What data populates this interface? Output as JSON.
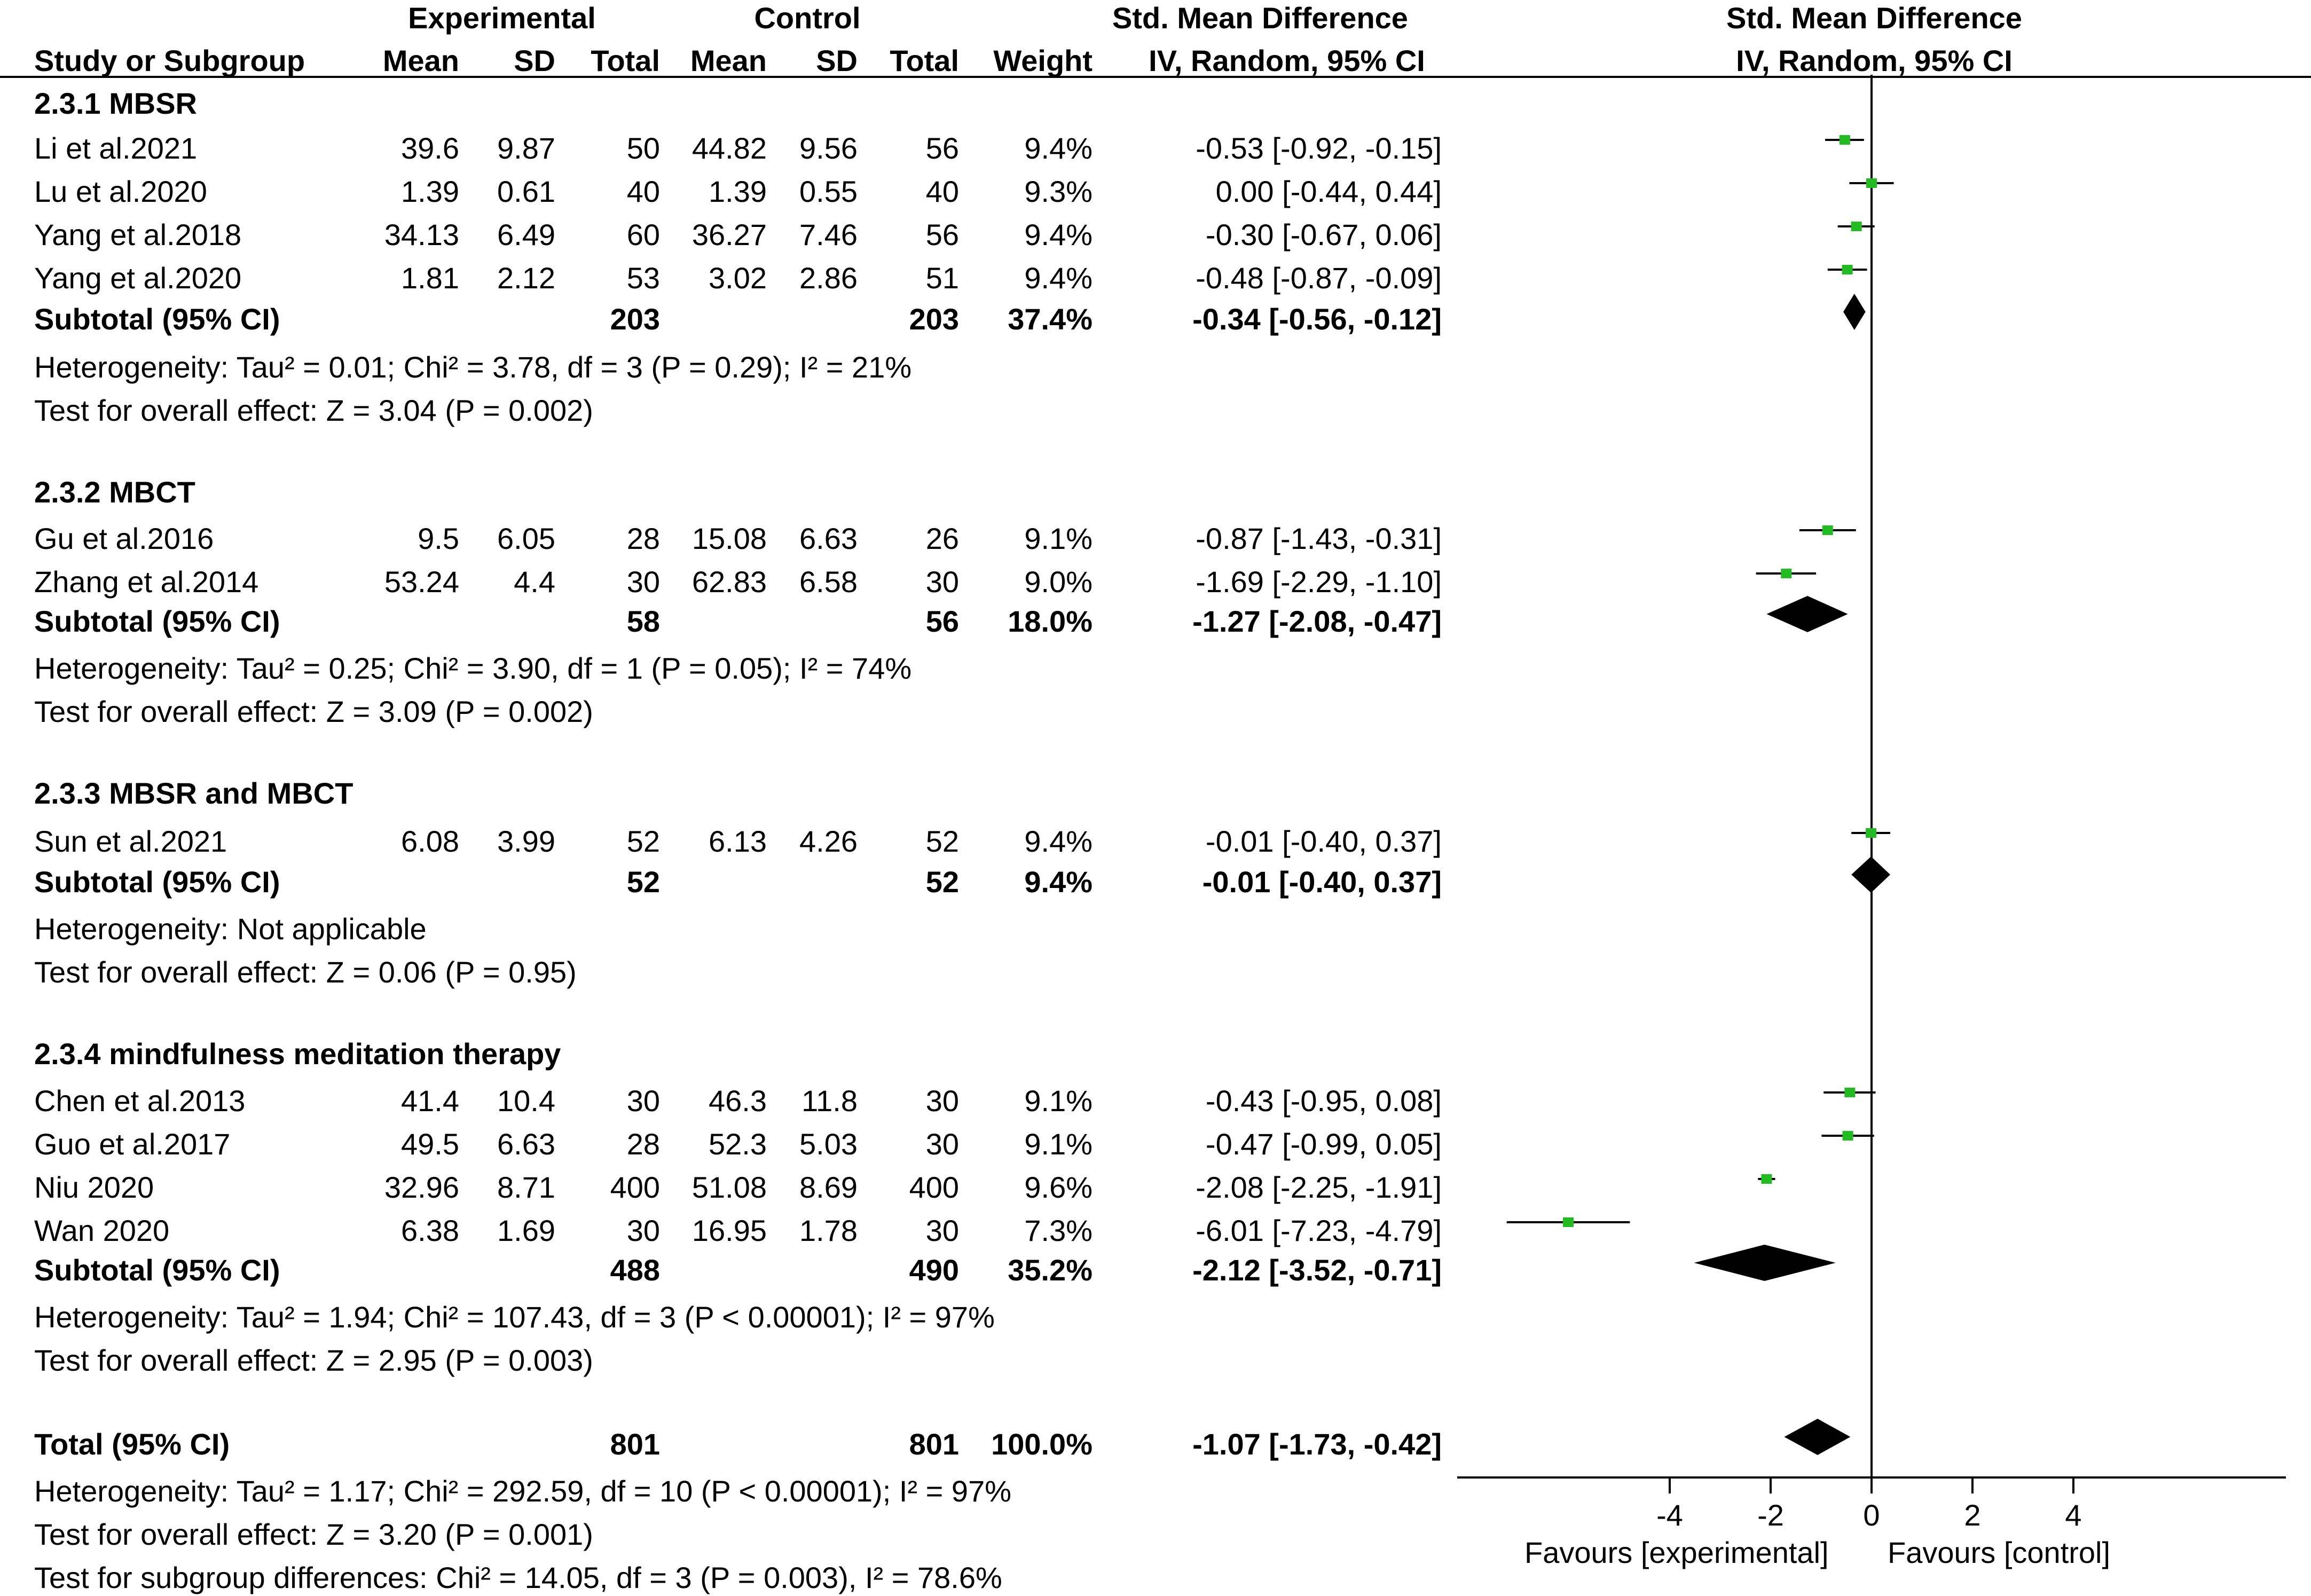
{
  "header": {
    "experimental": "Experimental",
    "control": "Control",
    "smd_left": "Std. Mean Difference",
    "smd_right": "Std. Mean Difference",
    "study": "Study or Subgroup",
    "mean": "Mean",
    "sd": "SD",
    "total": "Total",
    "weight": "Weight",
    "method_left": "IV, Random, 95% CI",
    "method_right": "IV, Random, 95% CI"
  },
  "groups": [
    {
      "title": "2.3.1 MBSR",
      "studies": [
        {
          "name": "Li et al.2021",
          "e_mean": "39.6",
          "e_sd": "9.87",
          "e_total": "50",
          "c_mean": "44.82",
          "c_sd": "9.56",
          "c_total": "56",
          "weight": "9.4%",
          "ci": "-0.53 [-0.92, -0.15]"
        },
        {
          "name": "Lu et al.2020",
          "e_mean": "1.39",
          "e_sd": "0.61",
          "e_total": "40",
          "c_mean": "1.39",
          "c_sd": "0.55",
          "c_total": "40",
          "weight": "9.3%",
          "ci": "0.00 [-0.44, 0.44]"
        },
        {
          "name": "Yang et al.2018",
          "e_mean": "34.13",
          "e_sd": "6.49",
          "e_total": "60",
          "c_mean": "36.27",
          "c_sd": "7.46",
          "c_total": "56",
          "weight": "9.4%",
          "ci": "-0.30 [-0.67, 0.06]"
        },
        {
          "name": "Yang et al.2020",
          "e_mean": "1.81",
          "e_sd": "2.12",
          "e_total": "53",
          "c_mean": "3.02",
          "c_sd": "2.86",
          "c_total": "51",
          "weight": "9.4%",
          "ci": "-0.48 [-0.87, -0.09]"
        }
      ],
      "subtotal": {
        "label": "Subtotal (95% CI)",
        "e_total": "203",
        "c_total": "203",
        "weight": "37.4%",
        "ci": "-0.34 [-0.56, -0.12]"
      },
      "heterogeneity": "Heterogeneity: Tau² = 0.01; Chi² = 3.78, df = 3 (P = 0.29); I² = 21%",
      "overall": "Test for overall effect: Z = 3.04 (P = 0.002)"
    },
    {
      "title": "2.3.2 MBCT",
      "studies": [
        {
          "name": "Gu et al.2016",
          "e_mean": "9.5",
          "e_sd": "6.05",
          "e_total": "28",
          "c_mean": "15.08",
          "c_sd": "6.63",
          "c_total": "26",
          "weight": "9.1%",
          "ci": "-0.87 [-1.43, -0.31]"
        },
        {
          "name": "Zhang et al.2014",
          "e_mean": "53.24",
          "e_sd": "4.4",
          "e_total": "30",
          "c_mean": "62.83",
          "c_sd": "6.58",
          "c_total": "30",
          "weight": "9.0%",
          "ci": "-1.69 [-2.29, -1.10]"
        }
      ],
      "subtotal": {
        "label": "Subtotal (95% CI)",
        "e_total": "58",
        "c_total": "56",
        "weight": "18.0%",
        "ci": "-1.27 [-2.08, -0.47]"
      },
      "heterogeneity": "Heterogeneity: Tau² = 0.25; Chi² = 3.90, df = 1 (P = 0.05); I² = 74%",
      "overall": "Test for overall effect: Z = 3.09 (P = 0.002)"
    },
    {
      "title": "2.3.3 MBSR and MBCT",
      "studies": [
        {
          "name": "Sun et al.2021",
          "e_mean": "6.08",
          "e_sd": "3.99",
          "e_total": "52",
          "c_mean": "6.13",
          "c_sd": "4.26",
          "c_total": "52",
          "weight": "9.4%",
          "ci": "-0.01 [-0.40, 0.37]"
        }
      ],
      "subtotal": {
        "label": "Subtotal (95% CI)",
        "e_total": "52",
        "c_total": "52",
        "weight": "9.4%",
        "ci": "-0.01 [-0.40, 0.37]"
      },
      "heterogeneity": "Heterogeneity: Not applicable",
      "overall": "Test for overall effect: Z = 0.06 (P = 0.95)"
    },
    {
      "title": "2.3.4 mindfulness meditation therapy",
      "studies": [
        {
          "name": "Chen et al.2013",
          "e_mean": "41.4",
          "e_sd": "10.4",
          "e_total": "30",
          "c_mean": "46.3",
          "c_sd": "11.8",
          "c_total": "30",
          "weight": "9.1%",
          "ci": "-0.43 [-0.95, 0.08]"
        },
        {
          "name": "Guo et al.2017",
          "e_mean": "49.5",
          "e_sd": "6.63",
          "e_total": "28",
          "c_mean": "52.3",
          "c_sd": "5.03",
          "c_total": "30",
          "weight": "9.1%",
          "ci": "-0.47 [-0.99, 0.05]"
        },
        {
          "name": "Niu 2020",
          "e_mean": "32.96",
          "e_sd": "8.71",
          "e_total": "400",
          "c_mean": "51.08",
          "c_sd": "8.69",
          "c_total": "400",
          "weight": "9.6%",
          "ci": "-2.08 [-2.25, -1.91]"
        },
        {
          "name": "Wan 2020",
          "e_mean": "6.38",
          "e_sd": "1.69",
          "e_total": "30",
          "c_mean": "16.95",
          "c_sd": "1.78",
          "c_total": "30",
          "weight": "7.3%",
          "ci": "-6.01 [-7.23, -4.79]"
        }
      ],
      "subtotal": {
        "label": "Subtotal (95% CI)",
        "e_total": "488",
        "c_total": "490",
        "weight": "35.2%",
        "ci": "-2.12 [-3.52, -0.71]"
      },
      "heterogeneity": "Heterogeneity: Tau² = 1.94; Chi² = 107.43, df = 3 (P < 0.00001); I² = 97%",
      "overall": "Test for overall effect: Z = 2.95 (P = 0.003)"
    }
  ],
  "total": {
    "label": "Total (95% CI)",
    "e_total": "801",
    "c_total": "801",
    "weight": "100.0%",
    "ci": "-1.07 [-1.73, -0.42]"
  },
  "footer": {
    "heterogeneity": "Heterogeneity: Tau² = 1.17; Chi² = 292.59, df = 10 (P < 0.00001); I² = 97%",
    "overall": "Test for overall effect: Z = 3.20 (P = 0.001)",
    "subgroup": "Test for subgroup differences: Chi² = 14.05, df = 3 (P = 0.003), I² = 78.6%"
  },
  "axis": {
    "favours_left": "Favours [experimental]",
    "favours_right": "Favours [control]"
  },
  "colors": {
    "study_marker": "#22bb22",
    "diamond": "#000000"
  },
  "chart_data": {
    "type": "scatter",
    "xlim": [
      -8,
      8
    ],
    "xticks": [
      -4,
      -2,
      0,
      2,
      4
    ],
    "reference_line": 0,
    "studies": [
      {
        "label": "Li et al.2021",
        "est": -0.53,
        "lo": -0.92,
        "hi": -0.15
      },
      {
        "label": "Lu et al.2020",
        "est": 0.0,
        "lo": -0.44,
        "hi": 0.44
      },
      {
        "label": "Yang et al.2018",
        "est": -0.3,
        "lo": -0.67,
        "hi": 0.06
      },
      {
        "label": "Yang et al.2020",
        "est": -0.48,
        "lo": -0.87,
        "hi": -0.09
      },
      {
        "label": "Gu et al.2016",
        "est": -0.87,
        "lo": -1.43,
        "hi": -0.31
      },
      {
        "label": "Zhang et al.2014",
        "est": -1.69,
        "lo": -2.29,
        "hi": -1.1
      },
      {
        "label": "Sun et al.2021",
        "est": -0.01,
        "lo": -0.4,
        "hi": 0.37
      },
      {
        "label": "Chen et al.2013",
        "est": -0.43,
        "lo": -0.95,
        "hi": 0.08
      },
      {
        "label": "Guo et al.2017",
        "est": -0.47,
        "lo": -0.99,
        "hi": 0.05
      },
      {
        "label": "Niu 2020",
        "est": -2.08,
        "lo": -2.25,
        "hi": -1.91
      },
      {
        "label": "Wan 2020",
        "est": -6.01,
        "lo": -7.23,
        "hi": -4.79
      }
    ],
    "diamonds": [
      {
        "label": "2.3.1 MBSR subtotal",
        "est": -0.34,
        "lo": -0.56,
        "hi": -0.12
      },
      {
        "label": "2.3.2 MBCT subtotal",
        "est": -1.27,
        "lo": -2.08,
        "hi": -0.47
      },
      {
        "label": "2.3.3 MBSR and MBCT subtotal",
        "est": -0.01,
        "lo": -0.4,
        "hi": 0.37
      },
      {
        "label": "2.3.4 mindfulness meditation therapy subtotal",
        "est": -2.12,
        "lo": -3.52,
        "hi": -0.71
      },
      {
        "label": "Total",
        "est": -1.07,
        "lo": -1.73,
        "hi": -0.42
      }
    ]
  }
}
